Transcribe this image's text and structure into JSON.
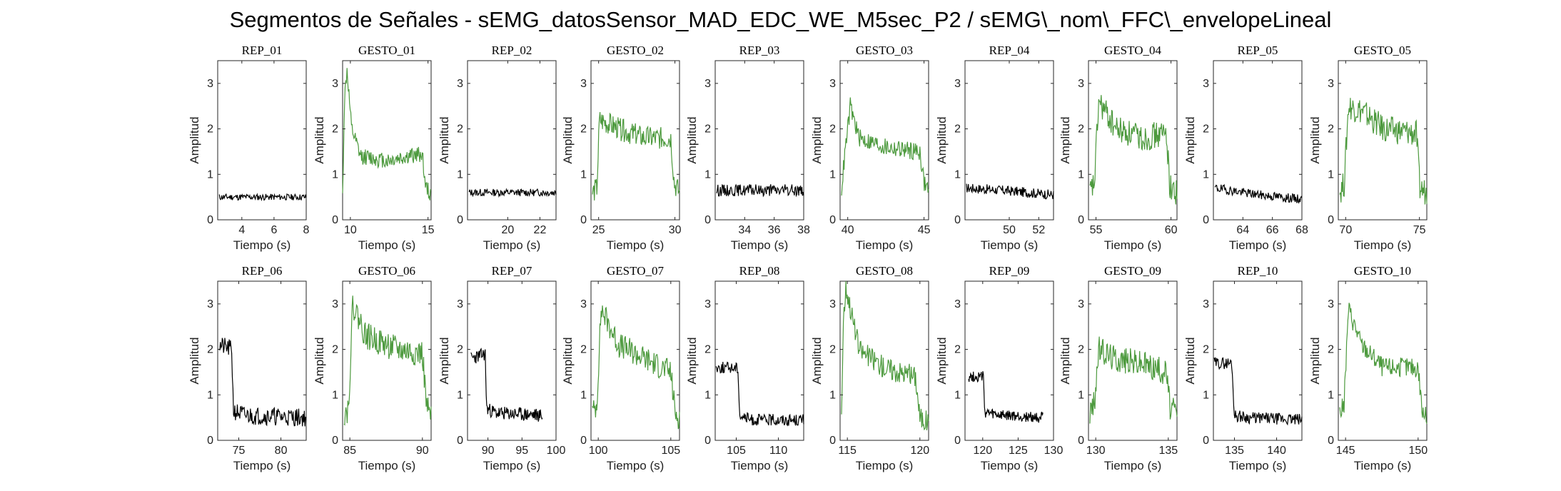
{
  "figure": {
    "title": "Segmentos de Señales - sEMG_datosSensor_MAD_EDC_WE_M5sec_P2 / sEMG\\_nom\\_FFC\\_envelopeLineal"
  },
  "colors": {
    "rest": "#000000",
    "gesture": "#4d9a3e",
    "axis": "#262626"
  },
  "chart_data": [
    {
      "type": "line",
      "title": "REP_01",
      "kind": "rest",
      "xlim": [
        2.5,
        8
      ],
      "xticks": [
        4,
        6,
        8
      ],
      "ylim": [
        0,
        3.5
      ],
      "yticks": [
        0,
        1,
        2,
        3
      ],
      "xlabel": "Tiempo (s)",
      "ylabel": "Amplitud",
      "x_range": [
        2.6,
        8
      ],
      "profile": [
        [
          0,
          0.5
        ],
        [
          1,
          0.5
        ]
      ],
      "noise": 0.07,
      "seed": 11
    },
    {
      "type": "line",
      "title": "GESTO_01",
      "kind": "gesture",
      "xlim": [
        9.5,
        15.2
      ],
      "xticks": [
        10,
        15
      ],
      "ylim": [
        0,
        3.5
      ],
      "yticks": [
        0,
        1,
        2,
        3
      ],
      "xlabel": "Tiempo (s)",
      "ylabel": "Amplitud",
      "x_range": [
        9.5,
        15.2
      ],
      "profile": [
        [
          0,
          0.5
        ],
        [
          0.02,
          2.6
        ],
        [
          0.05,
          3.3
        ],
        [
          0.1,
          2.0
        ],
        [
          0.2,
          1.4
        ],
        [
          0.5,
          1.3
        ],
        [
          0.9,
          1.45
        ],
        [
          0.94,
          0.7
        ],
        [
          1,
          0.55
        ]
      ],
      "noise": 0.18,
      "seed": 12
    },
    {
      "type": "line",
      "title": "REP_02",
      "kind": "rest",
      "xlim": [
        17.5,
        23
      ],
      "xticks": [
        20,
        22
      ],
      "ylim": [
        0,
        3.5
      ],
      "yticks": [
        0,
        1,
        2,
        3
      ],
      "xlabel": "Tiempo (s)",
      "ylabel": "Amplitud",
      "x_range": [
        17.6,
        23
      ],
      "profile": [
        [
          0,
          0.6
        ],
        [
          1,
          0.6
        ]
      ],
      "noise": 0.08,
      "seed": 13
    },
    {
      "type": "line",
      "title": "GESTO_02",
      "kind": "gesture",
      "xlim": [
        24.5,
        30.3
      ],
      "xticks": [
        25,
        30
      ],
      "ylim": [
        0,
        3.5
      ],
      "yticks": [
        0,
        1,
        2,
        3
      ],
      "xlabel": "Tiempo (s)",
      "ylabel": "Amplitud",
      "x_range": [
        24.6,
        30.3
      ],
      "profile": [
        [
          0,
          0.6
        ],
        [
          0.05,
          0.7
        ],
        [
          0.08,
          2.2
        ],
        [
          0.3,
          2.0
        ],
        [
          0.6,
          1.8
        ],
        [
          0.9,
          1.8
        ],
        [
          0.94,
          0.8
        ],
        [
          1,
          0.6
        ]
      ],
      "noise": 0.25,
      "seed": 14
    },
    {
      "type": "line",
      "title": "REP_03",
      "kind": "rest",
      "xlim": [
        32,
        38
      ],
      "xticks": [
        34,
        36,
        38
      ],
      "ylim": [
        0,
        3.5
      ],
      "yticks": [
        0,
        1,
        2,
        3
      ],
      "xlabel": "Tiempo (s)",
      "ylabel": "Amplitud",
      "x_range": [
        32.1,
        38
      ],
      "profile": [
        [
          0,
          0.65
        ],
        [
          1,
          0.65
        ]
      ],
      "noise": 0.13,
      "seed": 15
    },
    {
      "type": "line",
      "title": "GESTO_03",
      "kind": "gesture",
      "xlim": [
        39.5,
        45.3
      ],
      "xticks": [
        40,
        45
      ],
      "ylim": [
        0,
        3.5
      ],
      "yticks": [
        0,
        1,
        2,
        3
      ],
      "xlabel": "Tiempo (s)",
      "ylabel": "Amplitud",
      "x_range": [
        39.6,
        45.3
      ],
      "profile": [
        [
          0,
          0.7
        ],
        [
          0.04,
          1.5
        ],
        [
          0.1,
          2.5
        ],
        [
          0.2,
          1.8
        ],
        [
          0.5,
          1.6
        ],
        [
          0.9,
          1.5
        ],
        [
          0.95,
          0.8
        ],
        [
          1,
          0.7
        ]
      ],
      "noise": 0.2,
      "seed": 16
    },
    {
      "type": "line",
      "title": "REP_04",
      "kind": "rest",
      "xlim": [
        47,
        53
      ],
      "xticks": [
        50,
        52
      ],
      "ylim": [
        0,
        3.5
      ],
      "yticks": [
        0,
        1,
        2,
        3
      ],
      "xlabel": "Tiempo (s)",
      "ylabel": "Amplitud",
      "x_range": [
        47.1,
        53
      ],
      "profile": [
        [
          0,
          0.7
        ],
        [
          0.4,
          0.65
        ],
        [
          1,
          0.55
        ]
      ],
      "noise": 0.11,
      "seed": 17
    },
    {
      "type": "line",
      "title": "GESTO_04",
      "kind": "gesture",
      "xlim": [
        54.5,
        60.4
      ],
      "xticks": [
        55,
        60
      ],
      "ylim": [
        0,
        3.5
      ],
      "yticks": [
        0,
        1,
        2,
        3
      ],
      "xlabel": "Tiempo (s)",
      "ylabel": "Amplitud",
      "x_range": [
        54.6,
        60.4
      ],
      "profile": [
        [
          0,
          0.6
        ],
        [
          0.05,
          0.8
        ],
        [
          0.1,
          2.6
        ],
        [
          0.3,
          2.0
        ],
        [
          0.6,
          1.8
        ],
        [
          0.88,
          1.9
        ],
        [
          0.92,
          0.7
        ],
        [
          1,
          0.6
        ]
      ],
      "noise": 0.3,
      "seed": 18
    },
    {
      "type": "line",
      "title": "REP_05",
      "kind": "rest",
      "xlim": [
        62,
        68
      ],
      "xticks": [
        64,
        66,
        68
      ],
      "ylim": [
        0,
        3.5
      ],
      "yticks": [
        0,
        1,
        2,
        3
      ],
      "xlabel": "Tiempo (s)",
      "ylabel": "Amplitud",
      "x_range": [
        62.1,
        68
      ],
      "profile": [
        [
          0,
          0.7
        ],
        [
          0.5,
          0.55
        ],
        [
          1,
          0.45
        ]
      ],
      "noise": 0.1,
      "seed": 19
    },
    {
      "type": "line",
      "title": "GESTO_05",
      "kind": "gesture",
      "xlim": [
        69.5,
        75.5
      ],
      "xticks": [
        70,
        75
      ],
      "ylim": [
        0,
        3.5
      ],
      "yticks": [
        0,
        1,
        2,
        3
      ],
      "xlabel": "Tiempo (s)",
      "ylabel": "Amplitud",
      "x_range": [
        69.6,
        75.5
      ],
      "profile": [
        [
          0,
          0.6
        ],
        [
          0.05,
          0.8
        ],
        [
          0.1,
          2.5
        ],
        [
          0.25,
          2.4
        ],
        [
          0.5,
          2.0
        ],
        [
          0.88,
          1.9
        ],
        [
          0.92,
          0.7
        ],
        [
          1,
          0.6
        ]
      ],
      "noise": 0.3,
      "seed": 20
    },
    {
      "type": "line",
      "title": "REP_06",
      "kind": "rest",
      "xlim": [
        72.5,
        83
      ],
      "xticks": [
        75,
        80
      ],
      "ylim": [
        0,
        3.5
      ],
      "yticks": [
        0,
        1,
        2,
        3
      ],
      "xlabel": "Tiempo (s)",
      "ylabel": "Amplitud",
      "x_range": [
        72.6,
        83
      ],
      "profile": [
        [
          0,
          2.1
        ],
        [
          0.15,
          2.0
        ],
        [
          0.17,
          0.65
        ],
        [
          0.3,
          0.55
        ],
        [
          1,
          0.5
        ]
      ],
      "noise": 0.2,
      "seed": 21
    },
    {
      "type": "line",
      "title": "GESTO_06",
      "kind": "gesture",
      "xlim": [
        84.5,
        90.6
      ],
      "xticks": [
        85,
        90
      ],
      "ylim": [
        0,
        3.5
      ],
      "yticks": [
        0,
        1,
        2,
        3
      ],
      "xlabel": "Tiempo (s)",
      "ylabel": "Amplitud",
      "x_range": [
        84.6,
        90.6
      ],
      "profile": [
        [
          0,
          0.6
        ],
        [
          0.05,
          0.7
        ],
        [
          0.1,
          3.0
        ],
        [
          0.25,
          2.3
        ],
        [
          0.6,
          2.0
        ],
        [
          0.9,
          1.9
        ],
        [
          0.95,
          0.7
        ],
        [
          1,
          0.5
        ]
      ],
      "noise": 0.3,
      "seed": 22
    },
    {
      "type": "line",
      "title": "REP_07",
      "kind": "rest",
      "xlim": [
        87,
        100
      ],
      "xticks": [
        90,
        95,
        100
      ],
      "ylim": [
        0,
        3.5
      ],
      "yticks": [
        0,
        1,
        2,
        3
      ],
      "xlabel": "Tiempo (s)",
      "ylabel": "Amplitud",
      "x_range": [
        87.5,
        98
      ],
      "profile": [
        [
          0,
          1.8
        ],
        [
          0.2,
          1.9
        ],
        [
          0.22,
          0.7
        ],
        [
          0.35,
          0.6
        ],
        [
          1,
          0.55
        ]
      ],
      "noise": 0.15,
      "seed": 23
    },
    {
      "type": "line",
      "title": "GESTO_07",
      "kind": "gesture",
      "xlim": [
        99.5,
        105.6
      ],
      "xticks": [
        100,
        105
      ],
      "ylim": [
        0,
        3.5
      ],
      "yticks": [
        0,
        1,
        2,
        3
      ],
      "xlabel": "Tiempo (s)",
      "ylabel": "Amplitud",
      "x_range": [
        99.6,
        105.6
      ],
      "profile": [
        [
          0,
          0.6
        ],
        [
          0.05,
          0.8
        ],
        [
          0.1,
          2.9
        ],
        [
          0.3,
          2.1
        ],
        [
          0.6,
          1.8
        ],
        [
          0.9,
          1.5
        ],
        [
          0.95,
          0.6
        ],
        [
          1,
          0.5
        ]
      ],
      "noise": 0.28,
      "seed": 24
    },
    {
      "type": "line",
      "title": "REP_08",
      "kind": "rest",
      "xlim": [
        102.5,
        113
      ],
      "xticks": [
        105,
        110
      ],
      "ylim": [
        0,
        3.5
      ],
      "yticks": [
        0,
        1,
        2,
        3
      ],
      "xlabel": "Tiempo (s)",
      "ylabel": "Amplitud",
      "x_range": [
        102.6,
        113
      ],
      "profile": [
        [
          0,
          1.6
        ],
        [
          0.25,
          1.6
        ],
        [
          0.27,
          0.55
        ],
        [
          0.4,
          0.45
        ],
        [
          1,
          0.45
        ]
      ],
      "noise": 0.13,
      "seed": 25
    },
    {
      "type": "line",
      "title": "GESTO_08",
      "kind": "gesture",
      "xlim": [
        114.5,
        120.6
      ],
      "xticks": [
        115,
        120
      ],
      "ylim": [
        0,
        3.5
      ],
      "yticks": [
        0,
        1,
        2,
        3
      ],
      "xlabel": "Tiempo (s)",
      "ylabel": "Amplitud",
      "x_range": [
        114.6,
        120.6
      ],
      "profile": [
        [
          0,
          0.6
        ],
        [
          0.02,
          2.6
        ],
        [
          0.05,
          3.4
        ],
        [
          0.2,
          2.0
        ],
        [
          0.5,
          1.6
        ],
        [
          0.85,
          1.4
        ],
        [
          0.9,
          0.5
        ],
        [
          1,
          0.4
        ]
      ],
      "noise": 0.25,
      "seed": 26
    },
    {
      "type": "line",
      "title": "REP_09",
      "kind": "rest",
      "xlim": [
        117.5,
        130
      ],
      "xticks": [
        120,
        125,
        130
      ],
      "ylim": [
        0,
        3.5
      ],
      "yticks": [
        0,
        1,
        2,
        3
      ],
      "xlabel": "Tiempo (s)",
      "ylabel": "Amplitud",
      "x_range": [
        118,
        128.5
      ],
      "profile": [
        [
          0,
          1.4
        ],
        [
          0.2,
          1.4
        ],
        [
          0.22,
          0.6
        ],
        [
          0.4,
          0.55
        ],
        [
          1,
          0.5
        ]
      ],
      "noise": 0.12,
      "seed": 27
    },
    {
      "type": "line",
      "title": "GESTO_09",
      "kind": "gesture",
      "xlim": [
        129.5,
        135.6
      ],
      "xticks": [
        130,
        135
      ],
      "ylim": [
        0,
        3.5
      ],
      "yticks": [
        0,
        1,
        2,
        3
      ],
      "xlabel": "Tiempo (s)",
      "ylabel": "Amplitud",
      "x_range": [
        129.6,
        135.6
      ],
      "profile": [
        [
          0,
          0.6
        ],
        [
          0.05,
          0.8
        ],
        [
          0.1,
          2.0
        ],
        [
          0.3,
          1.8
        ],
        [
          0.6,
          1.7
        ],
        [
          0.88,
          1.5
        ],
        [
          0.92,
          0.7
        ],
        [
          1,
          0.6
        ]
      ],
      "noise": 0.3,
      "seed": 28
    },
    {
      "type": "line",
      "title": "REP_10",
      "kind": "rest",
      "xlim": [
        132.5,
        143
      ],
      "xticks": [
        135,
        140
      ],
      "ylim": [
        0,
        3.5
      ],
      "yticks": [
        0,
        1,
        2,
        3
      ],
      "xlabel": "Tiempo (s)",
      "ylabel": "Amplitud",
      "x_range": [
        132.6,
        143
      ],
      "profile": [
        [
          0,
          1.7
        ],
        [
          0.2,
          1.7
        ],
        [
          0.23,
          0.55
        ],
        [
          0.4,
          0.5
        ],
        [
          1,
          0.45
        ]
      ],
      "noise": 0.13,
      "seed": 29
    },
    {
      "type": "line",
      "title": "GESTO_10",
      "kind": "gesture",
      "xlim": [
        144.5,
        150.6
      ],
      "xticks": [
        145,
        150
      ],
      "ylim": [
        0,
        3.5
      ],
      "yticks": [
        0,
        1,
        2,
        3
      ],
      "xlabel": "Tiempo (s)",
      "ylabel": "Amplitud",
      "x_range": [
        144.6,
        150.6
      ],
      "profile": [
        [
          0,
          0.6
        ],
        [
          0.05,
          0.8
        ],
        [
          0.1,
          2.9
        ],
        [
          0.25,
          2.1
        ],
        [
          0.5,
          1.6
        ],
        [
          0.9,
          1.6
        ],
        [
          0.95,
          0.6
        ],
        [
          1,
          0.5
        ]
      ],
      "noise": 0.22,
      "seed": 30
    }
  ]
}
